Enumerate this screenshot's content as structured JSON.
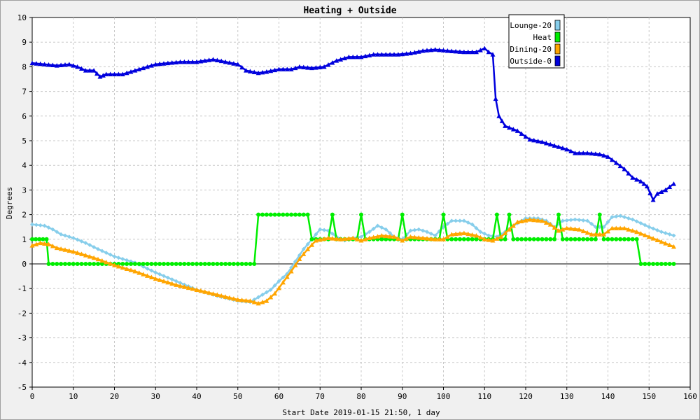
{
  "chart_data": {
    "type": "line",
    "title": "Heating + Outside",
    "xlabel": "Start Date 2019-01-15 21:50, 1 day",
    "ylabel": "Degrees",
    "xlim": [
      0,
      160
    ],
    "ylim": [
      -5,
      10
    ],
    "x_ticks": [
      "0",
      "10",
      "20",
      "30",
      "40",
      "50",
      "60",
      "70",
      "80",
      "90",
      "100",
      "110",
      "120",
      "130",
      "140",
      "150",
      "160"
    ],
    "y_ticks": [
      "-5",
      "-4",
      "-3",
      "-2",
      "-1",
      "0",
      "1",
      "2",
      "3",
      "4",
      "5",
      "6",
      "7",
      "8",
      "9",
      "10"
    ],
    "grid": true,
    "legend_position": "top-right",
    "series": [
      {
        "name": "Lounge-20",
        "color": "#87ceeb",
        "marker": "diamond",
        "points": [
          [
            0,
            1.6
          ],
          [
            3,
            1.55
          ],
          [
            5,
            1.4
          ],
          [
            7,
            1.2
          ],
          [
            10,
            1.05
          ],
          [
            13,
            0.85
          ],
          [
            16,
            0.6
          ],
          [
            20,
            0.3
          ],
          [
            25,
            0.05
          ],
          [
            30,
            -0.35
          ],
          [
            35,
            -0.7
          ],
          [
            40,
            -1.05
          ],
          [
            45,
            -1.3
          ],
          [
            50,
            -1.5
          ],
          [
            53,
            -1.55
          ],
          [
            55,
            -1.35
          ],
          [
            58,
            -1.05
          ],
          [
            60,
            -0.7
          ],
          [
            62,
            -0.4
          ],
          [
            64,
            0.1
          ],
          [
            66,
            0.6
          ],
          [
            68,
            1.0
          ],
          [
            70,
            1.4
          ],
          [
            72,
            1.35
          ],
          [
            74,
            1.1
          ],
          [
            76,
            0.95
          ],
          [
            78,
            1.05
          ],
          [
            80,
            1.1
          ],
          [
            82,
            1.3
          ],
          [
            84,
            1.55
          ],
          [
            86,
            1.4
          ],
          [
            88,
            1.1
          ],
          [
            90,
            1.0
          ],
          [
            92,
            1.35
          ],
          [
            94,
            1.4
          ],
          [
            96,
            1.3
          ],
          [
            98,
            1.15
          ],
          [
            100,
            1.5
          ],
          [
            102,
            1.75
          ],
          [
            105,
            1.75
          ],
          [
            107,
            1.6
          ],
          [
            109,
            1.3
          ],
          [
            111,
            1.15
          ],
          [
            113,
            1.1
          ],
          [
            115,
            1.3
          ],
          [
            117,
            1.55
          ],
          [
            120,
            1.85
          ],
          [
            123,
            1.85
          ],
          [
            125,
            1.75
          ],
          [
            127,
            1.5
          ],
          [
            129,
            1.75
          ],
          [
            132,
            1.8
          ],
          [
            135,
            1.75
          ],
          [
            137,
            1.5
          ],
          [
            139,
            1.5
          ],
          [
            141,
            1.9
          ],
          [
            143,
            1.95
          ],
          [
            146,
            1.8
          ],
          [
            150,
            1.5
          ],
          [
            153,
            1.3
          ],
          [
            156,
            1.15
          ]
        ]
      },
      {
        "name": "Heat",
        "color": "#00ee00",
        "marker": "circle",
        "points": [
          [
            0,
            1
          ],
          [
            3.5,
            1
          ],
          [
            4,
            0
          ],
          [
            54,
            0
          ],
          [
            55,
            2
          ],
          [
            67,
            2
          ],
          [
            68,
            1
          ],
          [
            72,
            1
          ],
          [
            73,
            2
          ],
          [
            74,
            1
          ],
          [
            79,
            1
          ],
          [
            80,
            2
          ],
          [
            81,
            1
          ],
          [
            89,
            1
          ],
          [
            90,
            2
          ],
          [
            91,
            1
          ],
          [
            99,
            1
          ],
          [
            100,
            2
          ],
          [
            101,
            1
          ],
          [
            112,
            1
          ],
          [
            113,
            2
          ],
          [
            114,
            1
          ],
          [
            115,
            1
          ],
          [
            116,
            2
          ],
          [
            117,
            1
          ],
          [
            127,
            1
          ],
          [
            128,
            2
          ],
          [
            129,
            1
          ],
          [
            137,
            1
          ],
          [
            138,
            2
          ],
          [
            139,
            1
          ],
          [
            147,
            1
          ],
          [
            148,
            0
          ],
          [
            156,
            0
          ]
        ]
      },
      {
        "name": "Dining-20",
        "color": "#ffa500",
        "marker": "triangle",
        "points": [
          [
            0,
            0.75
          ],
          [
            2,
            0.85
          ],
          [
            4,
            0.8
          ],
          [
            6,
            0.65
          ],
          [
            10,
            0.5
          ],
          [
            15,
            0.25
          ],
          [
            20,
            -0.05
          ],
          [
            25,
            -0.3
          ],
          [
            30,
            -0.6
          ],
          [
            35,
            -0.85
          ],
          [
            40,
            -1.05
          ],
          [
            45,
            -1.25
          ],
          [
            50,
            -1.45
          ],
          [
            53,
            -1.5
          ],
          [
            55,
            -1.6
          ],
          [
            57,
            -1.5
          ],
          [
            59,
            -1.2
          ],
          [
            61,
            -0.75
          ],
          [
            63,
            -0.3
          ],
          [
            65,
            0.2
          ],
          [
            67,
            0.6
          ],
          [
            69,
            0.95
          ],
          [
            72,
            1.05
          ],
          [
            75,
            1.0
          ],
          [
            78,
            1.05
          ],
          [
            80,
            0.95
          ],
          [
            82,
            1.05
          ],
          [
            85,
            1.15
          ],
          [
            88,
            1.1
          ],
          [
            90,
            0.95
          ],
          [
            92,
            1.1
          ],
          [
            95,
            1.05
          ],
          [
            98,
            1.0
          ],
          [
            100,
            1.0
          ],
          [
            102,
            1.2
          ],
          [
            105,
            1.25
          ],
          [
            108,
            1.15
          ],
          [
            110,
            1.0
          ],
          [
            112,
            0.95
          ],
          [
            114,
            1.1
          ],
          [
            116,
            1.4
          ],
          [
            118,
            1.7
          ],
          [
            121,
            1.8
          ],
          [
            124,
            1.75
          ],
          [
            126,
            1.6
          ],
          [
            128,
            1.35
          ],
          [
            130,
            1.45
          ],
          [
            133,
            1.4
          ],
          [
            136,
            1.2
          ],
          [
            139,
            1.2
          ],
          [
            141,
            1.45
          ],
          [
            144,
            1.45
          ],
          [
            147,
            1.3
          ],
          [
            150,
            1.1
          ],
          [
            153,
            0.9
          ],
          [
            156,
            0.7
          ]
        ]
      },
      {
        "name": "Outside-0",
        "color": "#0000dd",
        "marker": "triangle",
        "points": [
          [
            0,
            8.15
          ],
          [
            3,
            8.1
          ],
          [
            6,
            8.05
          ],
          [
            9,
            8.1
          ],
          [
            11,
            8.0
          ],
          [
            13,
            7.85
          ],
          [
            15,
            7.85
          ],
          [
            16.5,
            7.6
          ],
          [
            18,
            7.7
          ],
          [
            22,
            7.7
          ],
          [
            24,
            7.8
          ],
          [
            27,
            7.95
          ],
          [
            30,
            8.1
          ],
          [
            33,
            8.15
          ],
          [
            36,
            8.2
          ],
          [
            40,
            8.2
          ],
          [
            42,
            8.25
          ],
          [
            44,
            8.3
          ],
          [
            47,
            8.2
          ],
          [
            50,
            8.1
          ],
          [
            52,
            7.85
          ],
          [
            55,
            7.75
          ],
          [
            57,
            7.8
          ],
          [
            60,
            7.9
          ],
          [
            63,
            7.9
          ],
          [
            65,
            8.0
          ],
          [
            68,
            7.95
          ],
          [
            71,
            8.0
          ],
          [
            74,
            8.25
          ],
          [
            77,
            8.4
          ],
          [
            80,
            8.4
          ],
          [
            83,
            8.5
          ],
          [
            86,
            8.5
          ],
          [
            89,
            8.5
          ],
          [
            92,
            8.55
          ],
          [
            95,
            8.65
          ],
          [
            98,
            8.7
          ],
          [
            101,
            8.65
          ],
          [
            105,
            8.6
          ],
          [
            108,
            8.6
          ],
          [
            110,
            8.75
          ],
          [
            111,
            8.6
          ],
          [
            112,
            8.5
          ],
          [
            112.7,
            6.7
          ],
          [
            113.5,
            6.0
          ],
          [
            115,
            5.6
          ],
          [
            118,
            5.4
          ],
          [
            121,
            5.05
          ],
          [
            124,
            4.95
          ],
          [
            127,
            4.8
          ],
          [
            130,
            4.65
          ],
          [
            132,
            4.5
          ],
          [
            135,
            4.5
          ],
          [
            138,
            4.45
          ],
          [
            140,
            4.35
          ],
          [
            142,
            4.1
          ],
          [
            144,
            3.85
          ],
          [
            146,
            3.5
          ],
          [
            148,
            3.35
          ],
          [
            149.5,
            3.15
          ],
          [
            151,
            2.6
          ],
          [
            152,
            2.85
          ],
          [
            154,
            3.0
          ],
          [
            156,
            3.25
          ]
        ]
      }
    ]
  }
}
